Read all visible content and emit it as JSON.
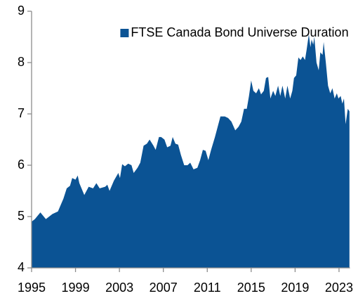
{
  "chart_data": {
    "type": "area",
    "x": [
      1995.0,
      1995.3,
      1995.8,
      1996.3,
      1996.9,
      1997.4,
      1997.9,
      1998.2,
      1998.5,
      1998.7,
      1999.0,
      1999.2,
      1999.35,
      1999.8,
      2000.2,
      2000.6,
      2000.9,
      2001.2,
      2001.7,
      2001.9,
      2002.1,
      2002.5,
      2002.9,
      2003.05,
      2003.25,
      2003.5,
      2003.8,
      2004.1,
      2004.3,
      2004.65,
      2004.9,
      2005.2,
      2005.5,
      2005.75,
      2006.1,
      2006.3,
      2006.6,
      2006.8,
      2007.1,
      2007.35,
      2007.65,
      2007.85,
      2008.1,
      2008.35,
      2008.6,
      2008.9,
      2009.2,
      2009.45,
      2009.75,
      2010.1,
      2010.35,
      2010.6,
      2010.85,
      2011.1,
      2011.35,
      2011.7,
      2011.95,
      2012.2,
      2012.6,
      2012.9,
      2013.2,
      2013.55,
      2013.85,
      2014.1,
      2014.35,
      2014.6,
      2014.8,
      2015.0,
      2015.2,
      2015.45,
      2015.7,
      2015.9,
      2016.15,
      2016.35,
      2016.55,
      2016.75,
      2017.0,
      2017.2,
      2017.45,
      2017.65,
      2017.85,
      2018.1,
      2018.3,
      2018.55,
      2018.75,
      2018.9,
      2019.1,
      2019.3,
      2019.5,
      2019.7,
      2019.9,
      2020.05,
      2020.25,
      2020.4,
      2020.5,
      2020.65,
      2020.75,
      2020.95,
      2021.15,
      2021.3,
      2021.5,
      2021.6,
      2021.8,
      2022.0,
      2022.2,
      2022.4,
      2022.6,
      2022.8,
      2022.95,
      2023.15,
      2023.3,
      2023.45,
      2023.6,
      2023.7,
      2023.8,
      2023.95
    ],
    "series": [
      {
        "name": "FTSE Canada Bond Universe Duration",
        "color": "#0b5394",
        "values": [
          4.9,
          4.95,
          5.08,
          4.95,
          5.05,
          5.1,
          5.35,
          5.55,
          5.6,
          5.75,
          5.72,
          5.8,
          5.65,
          5.42,
          5.58,
          5.55,
          5.65,
          5.55,
          5.58,
          5.62,
          5.5,
          5.7,
          5.85,
          5.75,
          6.02,
          5.98,
          6.03,
          6.0,
          5.85,
          5.95,
          6.05,
          6.38,
          6.42,
          6.5,
          6.38,
          6.3,
          6.55,
          6.55,
          6.5,
          6.35,
          6.38,
          6.55,
          6.42,
          6.4,
          6.2,
          6.0,
          6.0,
          6.05,
          5.92,
          5.95,
          6.1,
          6.3,
          6.28,
          6.1,
          6.3,
          6.55,
          6.75,
          6.95,
          6.95,
          6.92,
          6.85,
          6.68,
          6.75,
          6.85,
          7.1,
          7.1,
          7.35,
          7.65,
          7.45,
          7.4,
          7.5,
          7.38,
          7.45,
          7.7,
          7.72,
          7.3,
          7.45,
          7.35,
          7.55,
          7.35,
          7.55,
          7.3,
          7.55,
          7.3,
          7.45,
          7.7,
          7.75,
          8.1,
          8.05,
          8.12,
          8.05,
          8.25,
          8.55,
          8.3,
          8.45,
          8.35,
          8.5,
          8.0,
          7.85,
          8.2,
          8.15,
          8.4,
          8.0,
          7.55,
          7.4,
          7.5,
          7.3,
          7.4,
          7.3,
          7.35,
          7.2,
          7.3,
          6.8,
          6.95,
          7.1,
          7.05
        ]
      }
    ],
    "xlim": [
      1995,
      2024
    ],
    "xticks": [
      1995,
      1999,
      2003,
      2007,
      2011,
      2015,
      2019,
      2023
    ],
    "ylim": [
      4,
      9
    ],
    "yticks": [
      4,
      5,
      6,
      7,
      8,
      9
    ],
    "legend": "top-right"
  }
}
